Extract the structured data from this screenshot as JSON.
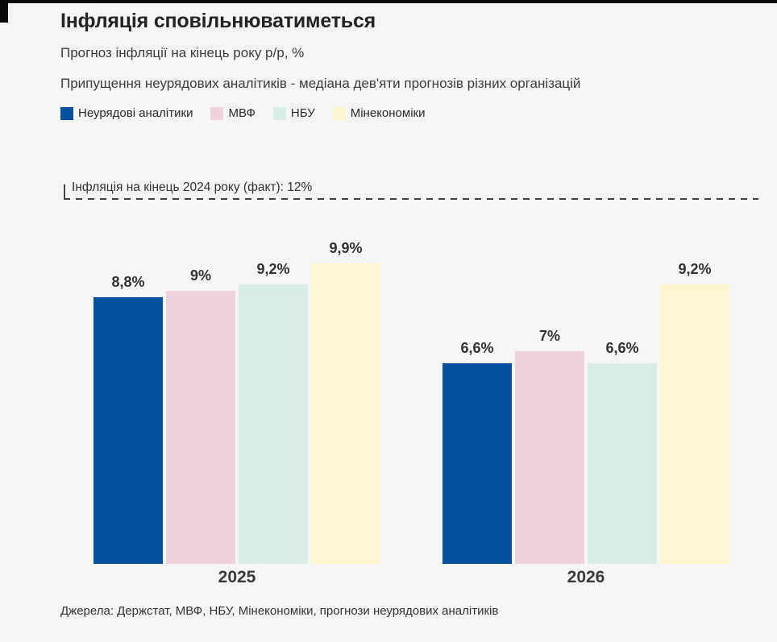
{
  "page": {
    "background": "#f5f5f6",
    "brand_bar_color": "#0b0b0b"
  },
  "header": {
    "title": "Інфляція сповільнюватиметься",
    "subtitle": "Прогноз інфляції на кінець року р/р, %",
    "note": "Припущення неурядових аналітиків - медіана дев'яти прогнозів різних організацій"
  },
  "legend": [
    {
      "label": "Неурядові аналітики",
      "color": "#04519d"
    },
    {
      "label": "МВФ",
      "color": "#eed3de"
    },
    {
      "label": "НБУ",
      "color": "#d9ede4"
    },
    {
      "label": "Мінекономіки",
      "color": "#fdf5cf"
    }
  ],
  "chart_data": {
    "type": "bar",
    "categories": [
      "2025",
      "2026"
    ],
    "series": [
      {
        "name": "Неурядові аналітики",
        "color": "#04519d",
        "values": [
          8.8,
          6.6
        ],
        "labels": [
          "8,8%",
          "6,6%"
        ]
      },
      {
        "name": "МВФ",
        "color": "#eed3de",
        "values": [
          9,
          7
        ],
        "labels": [
          "9%",
          "7%"
        ]
      },
      {
        "name": "НБУ",
        "color": "#d9ede4",
        "values": [
          9.2,
          6.6
        ],
        "labels": [
          "9,2%",
          "6,6%"
        ]
      },
      {
        "name": "Мінекономіки",
        "color": "#fdf5cf",
        "values": [
          9.9,
          9.2
        ],
        "labels": [
          "9,9%",
          "9,2%"
        ]
      }
    ],
    "title": "Інфляція сповільнюватиметься",
    "xlabel": "",
    "ylabel": "Прогноз інфляції на кінець року р/р, %",
    "ylim": [
      0,
      12
    ],
    "grid": false,
    "legend_position": "top",
    "reference_line": {
      "value": 12,
      "label": "Інфляція на кінець 2024 року (факт): 12%"
    }
  },
  "footer": {
    "source": "Джерела: Держстат, МВФ, НБУ, Мінекономіки, прогнози неурядових аналітиків"
  }
}
